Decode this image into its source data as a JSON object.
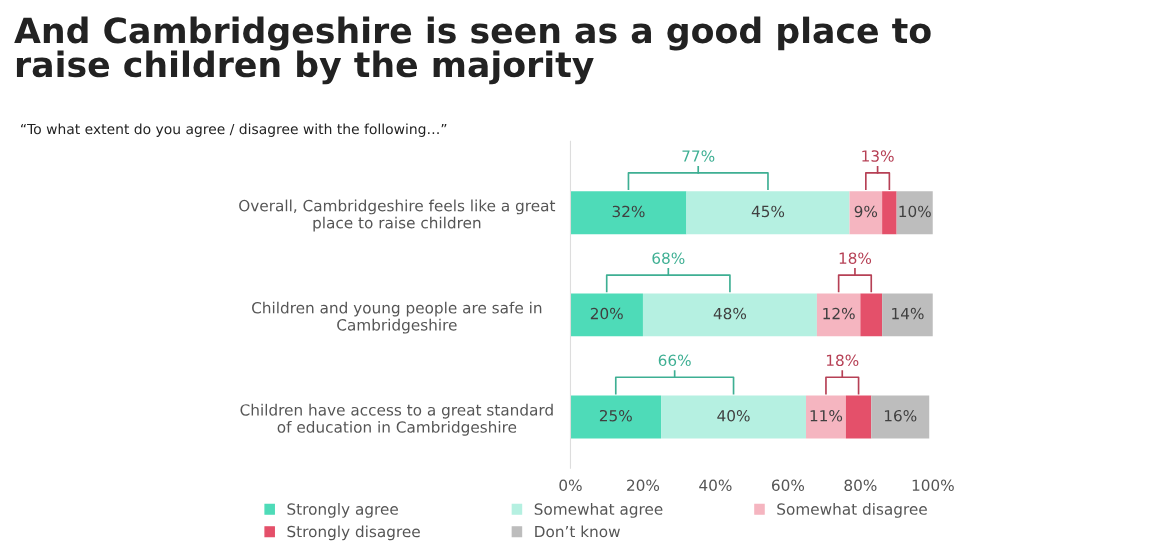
{
  "chart_data": {
    "type": "bar",
    "orientation": "horizontal",
    "stacked": true,
    "title": "And Cambridgeshire is seen as a good place to\nraise children by the majority",
    "subtitle": "“To what extent do you agree / disagree with the following…”",
    "categories": [
      "Overall, Cambridgeshire feels like a great\nplace to raise children",
      "Children and young people are safe in\nCambridgeshire",
      "Children have access to a great standard\nof education in Cambridgeshire"
    ],
    "series": [
      {
        "name": "Strongly agree",
        "color": "#4edbb8",
        "values": [
          32,
          20,
          25
        ],
        "value_labels": [
          "32%",
          "20%",
          "25%"
        ]
      },
      {
        "name": "Somewhat agree",
        "color": "#b5f0e1",
        "values": [
          45,
          48,
          40
        ],
        "value_labels": [
          "45%",
          "48%",
          "40%"
        ]
      },
      {
        "name": "Somewhat disagree",
        "color": "#f5b5c0",
        "values": [
          9,
          12,
          11
        ],
        "value_labels": [
          "9%",
          "12%",
          "11%"
        ]
      },
      {
        "name": "Strongly disagree",
        "color": "#e4506a",
        "values": [
          4,
          6,
          7
        ],
        "value_labels": [
          null,
          null,
          null
        ]
      },
      {
        "name": "Don’t know",
        "color": "#bdbdbd",
        "values": [
          10,
          14,
          16
        ],
        "value_labels": [
          "10%",
          "14%",
          "16%"
        ]
      }
    ],
    "annotations": [
      "77%",
      "13%",
      "68%",
      "18%",
      "66%",
      "18%"
    ],
    "xlim": [
      0,
      100
    ],
    "xticks": [
      {
        "value": 0,
        "label": "0%"
      },
      {
        "value": 20,
        "label": "20%"
      },
      {
        "value": 40,
        "label": "40%"
      },
      {
        "value": 60,
        "label": "60%"
      },
      {
        "value": 80,
        "label": "80%"
      },
      {
        "value": 100,
        "label": "100%"
      }
    ],
    "legend": "bottom",
    "grid": false
  }
}
